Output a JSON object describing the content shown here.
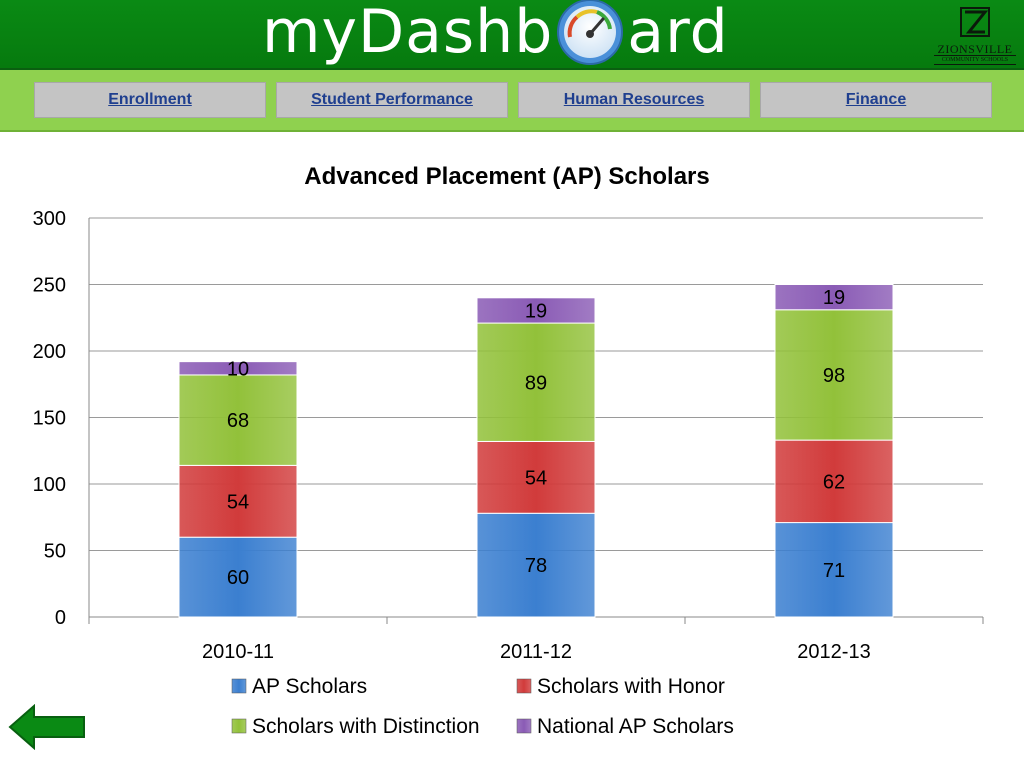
{
  "header": {
    "logo_text_left": "myDashb",
    "logo_text_right": "ard",
    "school_name": "ZIONSVILLE",
    "school_sub": "COMMUNITY SCHOOLS"
  },
  "nav": {
    "items": [
      {
        "label": "Enrollment"
      },
      {
        "label": "Student Performance"
      },
      {
        "label": "Human Resources"
      },
      {
        "label": "Finance"
      }
    ]
  },
  "colors": {
    "header_green": "#0a8a14",
    "nav_green": "#8fd14f",
    "nav_text": "#1f3f8f",
    "ap_scholars": "#3b7fd0",
    "scholars_with_honor": "#d13b3b",
    "scholars_with_distinction": "#92c13a",
    "national_ap_scholars": "#8a5bb5"
  },
  "chart_data": {
    "type": "bar",
    "stacked": true,
    "title": "Advanced Placement (AP) Scholars",
    "categories": [
      "2010-11",
      "2011-12",
      "2012-13"
    ],
    "series": [
      {
        "name": "AP Scholars",
        "values": [
          60,
          78,
          71
        ],
        "color": "#3b7fd0"
      },
      {
        "name": "Scholars with Honor",
        "values": [
          54,
          54,
          62
        ],
        "color": "#d13b3b"
      },
      {
        "name": "Scholars with Distinction",
        "values": [
          68,
          89,
          98
        ],
        "color": "#92c13a"
      },
      {
        "name": "National AP Scholars",
        "values": [
          10,
          19,
          19
        ],
        "color": "#8a5bb5"
      }
    ],
    "ylim": [
      0,
      300
    ],
    "yticks": [
      "0",
      "50",
      "100",
      "150",
      "200",
      "250",
      "300"
    ],
    "grid": true,
    "legend_position": "bottom"
  },
  "footer": {
    "back_icon": "left-arrow-icon"
  }
}
